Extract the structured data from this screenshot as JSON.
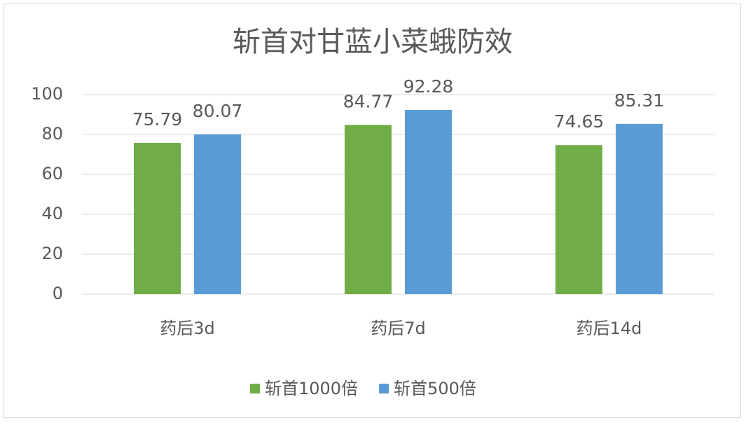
{
  "chart_data": {
    "type": "bar",
    "title": "斩首对甘蓝小菜蛾防效",
    "categories": [
      "药后3d",
      "药后7d",
      "药后14d"
    ],
    "series": [
      {
        "name": "斩首1000倍",
        "color": "#70ad47",
        "values": [
          75.79,
          84.77,
          74.65
        ]
      },
      {
        "name": "斩首500倍",
        "color": "#5b9bd5",
        "values": [
          80.07,
          92.28,
          85.31
        ]
      }
    ],
    "ylim": [
      0,
      100
    ],
    "yticks": [
      0,
      20,
      40,
      60,
      80,
      100
    ],
    "grid": true,
    "legend": "bottom"
  }
}
